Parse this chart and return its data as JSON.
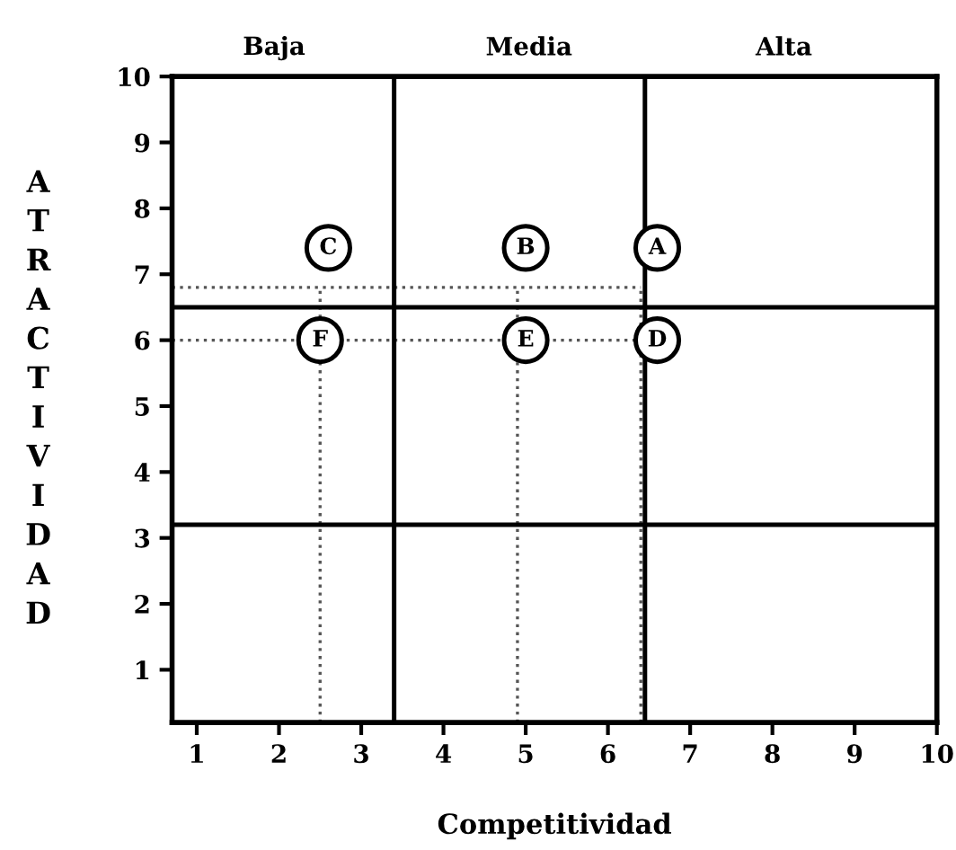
{
  "chart_data": {
    "type": "scatter",
    "xlabel": "Competitividad",
    "ylabel": "ATRACTIVIDAD",
    "xlim": [
      0.7,
      10
    ],
    "ylim": [
      0.2,
      10
    ],
    "xticks": [
      1,
      2,
      3,
      4,
      5,
      6,
      7,
      8,
      9,
      10
    ],
    "yticks": [
      1,
      2,
      3,
      4,
      5,
      6,
      7,
      8,
      9,
      10
    ],
    "grid": false,
    "legend": false,
    "series": [
      {
        "marker": "circle",
        "color": "#000000",
        "x": [
          6.6,
          5.0,
          2.6,
          6.6,
          5.0,
          2.5
        ],
        "values": [
          7.4,
          7.4,
          7.4,
          6.0,
          6.0,
          6.0
        ]
      },
      {
        "type": "line",
        "line_style": "dotted",
        "color": "#555555",
        "x": [
          0.7,
          6.4
        ],
        "values": [
          6.8,
          6.8
        ]
      },
      {
        "type": "line",
        "line_style": "dotted",
        "color": "#555555",
        "x": [
          0.7,
          6.4
        ],
        "values": [
          6.0,
          6.0
        ]
      },
      {
        "type": "line",
        "line_style": "dotted",
        "color": "#555555",
        "x": [
          2.5,
          2.5
        ],
        "values": [
          0.2,
          6.8
        ]
      },
      {
        "type": "line",
        "line_style": "dotted",
        "color": "#555555",
        "x": [
          4.9,
          4.9
        ],
        "values": [
          0.2,
          6.8
        ]
      },
      {
        "type": "line",
        "line_style": "dotted",
        "color": "#555555",
        "x": [
          6.4,
          6.4
        ],
        "values": [
          0.2,
          6.8
        ]
      }
    ],
    "ref_lines": [
      {
        "axis": "x",
        "value": 3.4,
        "color": "#000000",
        "line_style": "solid"
      },
      {
        "axis": "x",
        "value": 6.45,
        "color": "#000000",
        "line_style": "solid"
      },
      {
        "axis": "y",
        "value": 6.5,
        "color": "#000000",
        "line_style": "solid"
      },
      {
        "axis": "y",
        "value": 3.2,
        "color": "#000000",
        "line_style": "solid"
      }
    ],
    "annotations": [
      "Baja",
      "Media",
      "Alta",
      {
        "text": "A",
        "x": 6.6,
        "y": 7.4
      },
      {
        "text": "B",
        "x": 5.0,
        "y": 7.4
      },
      {
        "text": "C",
        "x": 2.6,
        "y": 7.4
      },
      {
        "text": "D",
        "x": 6.6,
        "y": 6.0
      },
      {
        "text": "E",
        "x": 5.0,
        "y": 6.0
      },
      {
        "text": "F",
        "x": 2.5,
        "y": 6.0
      }
    ]
  }
}
